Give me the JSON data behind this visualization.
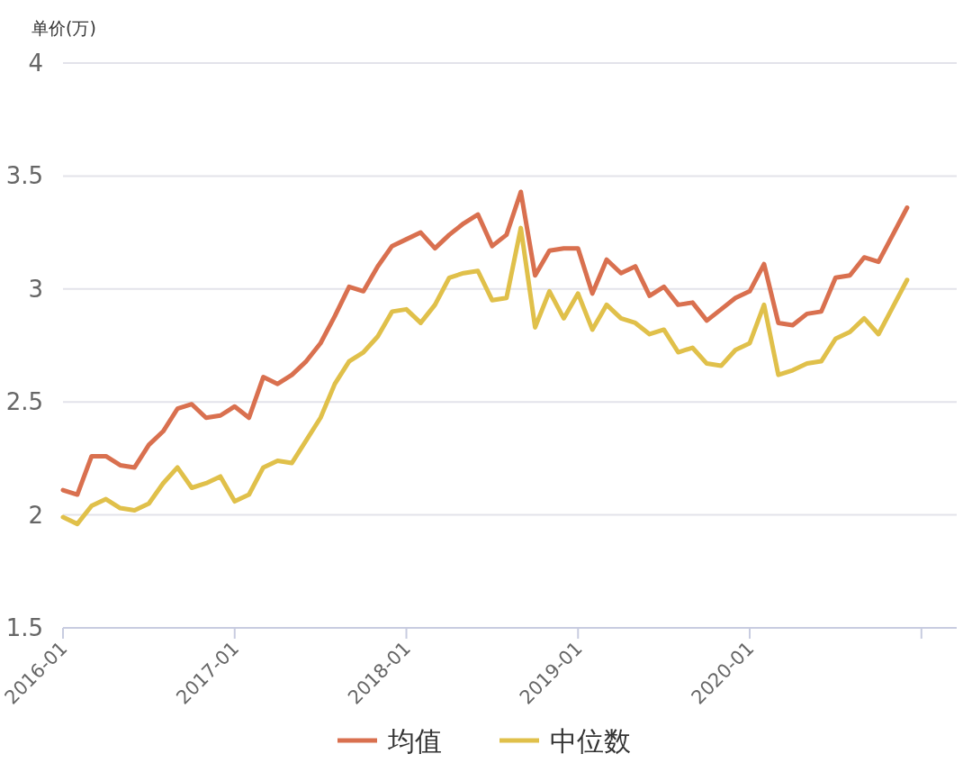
{
  "chart_data": {
    "type": "line",
    "ylabel": "单价(万)",
    "grid": "y",
    "legend": "bottom",
    "x": [
      "2016-01",
      "2016-02",
      "2016-03",
      "2016-04",
      "2016-05",
      "2016-06",
      "2016-07",
      "2016-08",
      "2016-09",
      "2016-10",
      "2016-11",
      "2016-12",
      "2017-01",
      "2017-02",
      "2017-03",
      "2017-04",
      "2017-05",
      "2017-06",
      "2017-07",
      "2017-08",
      "2017-09",
      "2017-10",
      "2017-11",
      "2017-12",
      "2018-01",
      "2018-02",
      "2018-03",
      "2018-04",
      "2018-05",
      "2018-06",
      "2018-07",
      "2018-08",
      "2018-09",
      "2018-10",
      "2018-11",
      "2018-12",
      "2019-01",
      "2019-02",
      "2019-03",
      "2019-04",
      "2019-05",
      "2019-06",
      "2019-07",
      "2019-08",
      "2019-09",
      "2019-10",
      "2019-11",
      "2019-12",
      "2020-01",
      "2020-02",
      "2020-03",
      "2020-04",
      "2020-05",
      "2020-06",
      "2020-07",
      "2020-08",
      "2020-09",
      "2020-10",
      "2020-11",
      "2020-12"
    ],
    "xlim": [
      "2016-01",
      "2021-03-15"
    ],
    "xticks": [
      "2016-01",
      "2017-01",
      "2018-01",
      "2019-01",
      "2020-01",
      {
        "value": "2021-01",
        "label": null
      }
    ],
    "ylim": [
      1.5,
      4
    ],
    "yticks": [
      1.5,
      2,
      2.5,
      3,
      3.5,
      4
    ],
    "series": [
      {
        "name": "均值",
        "color": "#d9704f",
        "values": [
          2.11,
          2.09,
          2.26,
          2.26,
          2.22,
          2.21,
          2.31,
          2.37,
          2.47,
          2.49,
          2.43,
          2.44,
          2.48,
          2.43,
          2.61,
          2.58,
          2.62,
          2.68,
          2.76,
          2.88,
          3.01,
          2.99,
          3.1,
          3.19,
          3.22,
          3.25,
          3.18,
          3.24,
          3.29,
          3.33,
          3.19,
          3.24,
          3.43,
          3.06,
          3.17,
          3.18,
          3.18,
          2.98,
          3.13,
          3.07,
          3.1,
          2.97,
          3.01,
          2.93,
          2.94,
          2.86,
          2.91,
          2.96,
          2.99,
          3.11,
          2.85,
          2.84,
          2.89,
          2.9,
          3.05,
          3.06,
          3.14,
          3.12,
          3.24,
          3.36
        ]
      },
      {
        "name": "中位数",
        "color": "#e0c04a",
        "values": [
          1.99,
          1.96,
          2.04,
          2.07,
          2.03,
          2.02,
          2.05,
          2.14,
          2.21,
          2.12,
          2.14,
          2.17,
          2.06,
          2.09,
          2.21,
          2.24,
          2.23,
          2.33,
          2.43,
          2.58,
          2.68,
          2.72,
          2.79,
          2.9,
          2.91,
          2.85,
          2.93,
          3.05,
          3.07,
          3.08,
          2.95,
          2.96,
          3.27,
          2.83,
          2.99,
          2.87,
          2.98,
          2.82,
          2.93,
          2.87,
          2.85,
          2.8,
          2.82,
          2.72,
          2.74,
          2.67,
          2.66,
          2.73,
          2.76,
          2.93,
          2.62,
          2.64,
          2.67,
          2.68,
          2.78,
          2.81,
          2.87,
          2.8,
          2.92,
          3.04
        ]
      }
    ]
  }
}
